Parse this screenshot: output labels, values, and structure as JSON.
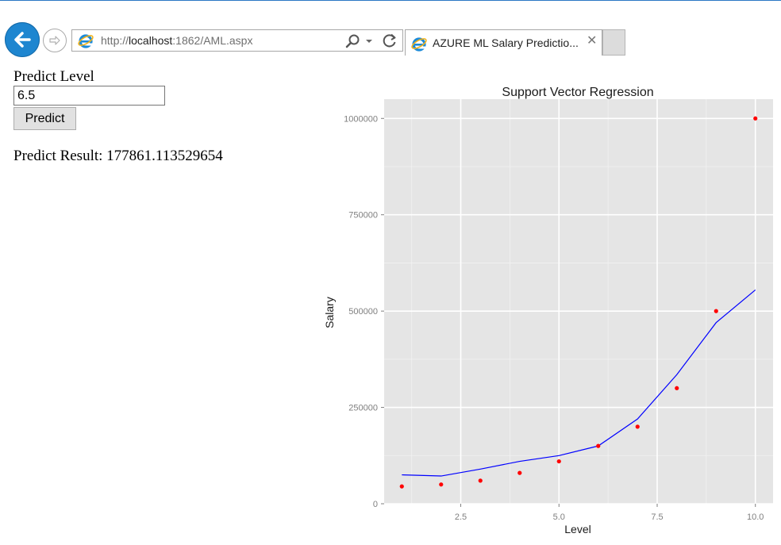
{
  "browser": {
    "url_prefix": "http://",
    "url_host": "localhost",
    "url_rest": ":1862/AML.aspx",
    "tab_title": "AZURE ML Salary Predictio...",
    "tab_close": "✕",
    "accent": "#1e86d0"
  },
  "form": {
    "label": "Predict Level",
    "input_value": "6.5",
    "button_label": "Predict",
    "result_label": "Predict Result: ",
    "result_value": "177861.113529654"
  },
  "chart_data": {
    "type": "scatter",
    "title": "Support Vector Regression",
    "xlabel": "Level",
    "ylabel": "Salary",
    "xlim": [
      0.55,
      10.45
    ],
    "ylim": [
      0,
      1050000
    ],
    "xticks": [
      2.5,
      5.0,
      7.5,
      10.0
    ],
    "xtick_labels": [
      "2.5",
      "5.0",
      "7.5",
      "10.0"
    ],
    "yticks": [
      0,
      250000,
      500000,
      750000,
      1000000
    ],
    "ytick_labels": [
      "0",
      "250000",
      "500000",
      "750000",
      "1000000"
    ],
    "grid": true,
    "points": {
      "color": "#ff0000",
      "x": [
        1,
        2,
        3,
        4,
        5,
        6,
        7,
        8,
        9,
        10
      ],
      "y": [
        45000,
        50000,
        60000,
        80000,
        110000,
        150000,
        200000,
        300000,
        500000,
        1000000
      ]
    },
    "line": {
      "color": "#0000ff",
      "x": [
        1,
        2,
        3,
        4,
        5,
        6,
        7,
        8,
        9,
        10
      ],
      "y": [
        75000,
        72000,
        90000,
        110000,
        125000,
        150000,
        220000,
        335000,
        470000,
        555000
      ]
    }
  }
}
